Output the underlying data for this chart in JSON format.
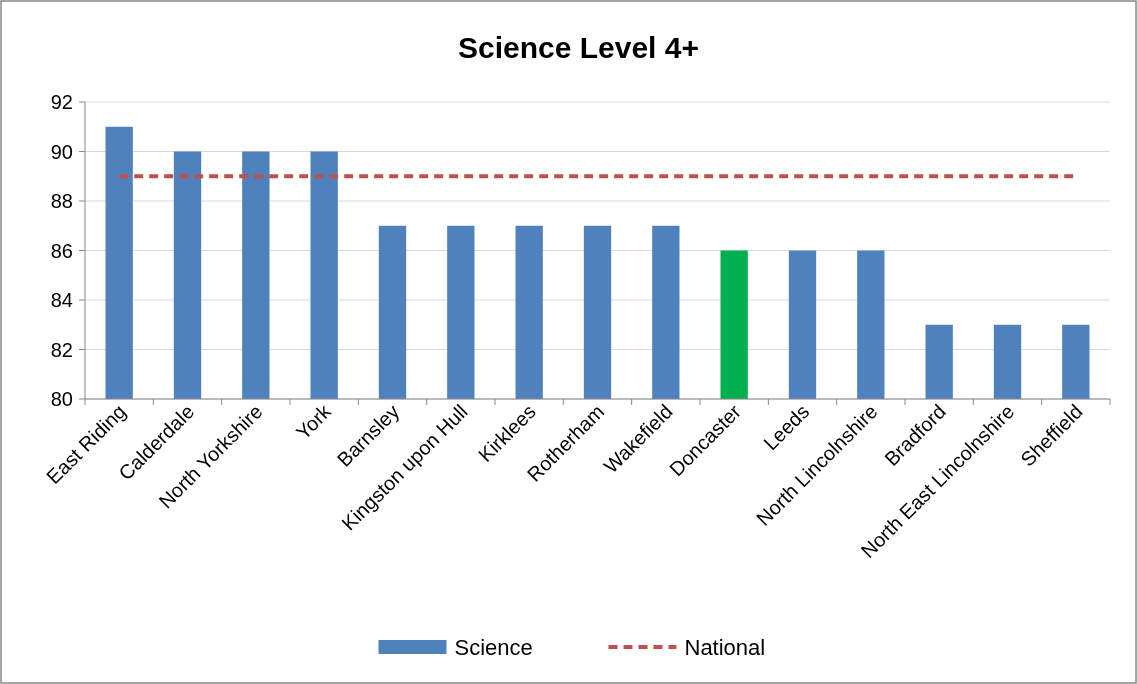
{
  "chart_data": {
    "type": "bar",
    "title": "Science Level 4+",
    "categories": [
      "East Riding",
      "Calderdale",
      "North Yorkshire",
      "York",
      "Barnsley",
      "Kingston upon Hull",
      "Kirklees",
      "Rotherham",
      "Wakefield",
      "Doncaster",
      "Leeds",
      "North Lincolnshire",
      "Bradford",
      "North East Lincolnshire",
      "Sheffield"
    ],
    "series": [
      {
        "name": "Science",
        "color": "#4f81bd",
        "colors": [
          "#4f81bd",
          "#4f81bd",
          "#4f81bd",
          "#4f81bd",
          "#4f81bd",
          "#4f81bd",
          "#4f81bd",
          "#4f81bd",
          "#4f81bd",
          "#00b050",
          "#4f81bd",
          "#4f81bd",
          "#4f81bd",
          "#4f81bd",
          "#4f81bd"
        ],
        "values": [
          91,
          90,
          90,
          90,
          87,
          87,
          87,
          87,
          87,
          86,
          86,
          86,
          83,
          83,
          83
        ]
      },
      {
        "name": "National",
        "type": "line",
        "color": "#c0504d",
        "line_style": "dashed",
        "values": [
          89,
          89,
          89,
          89,
          89,
          89,
          89,
          89,
          89,
          89,
          89,
          89,
          89,
          89,
          89
        ]
      }
    ],
    "ylim": [
      80,
      92
    ],
    "yticks": [
      80,
      82,
      84,
      86,
      88,
      90,
      92
    ],
    "grid": "y",
    "legend": "bottom"
  }
}
